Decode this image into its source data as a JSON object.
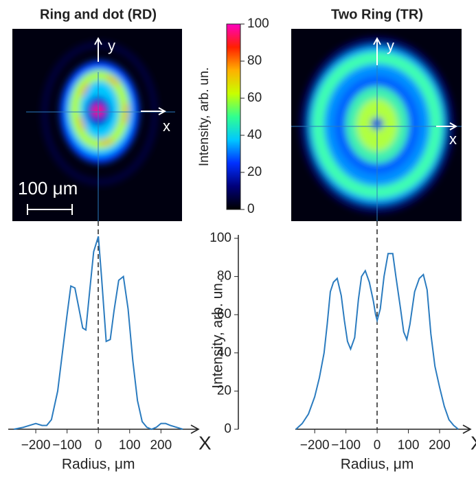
{
  "chart_data": [
    {
      "type": "image",
      "title": "Ring and dot (RD)",
      "xlabel": "x",
      "ylabel": "y",
      "scale_label": "100 μm"
    },
    {
      "type": "colorbar",
      "label": "Intensity, arb. un.",
      "lim": [
        0,
        100
      ],
      "ticks": [
        0,
        20,
        40,
        60,
        80,
        100
      ],
      "colors": [
        "#000000",
        "#00007a",
        "#0030ff",
        "#00c8ff",
        "#30ff90",
        "#c8ff00",
        "#ffb000",
        "#ff2000",
        "#ff00c0"
      ]
    },
    {
      "type": "image",
      "title": "Two Ring (TR)",
      "xlabel": "x",
      "ylabel": "y"
    },
    {
      "type": "line",
      "color": "#2a7bbf",
      "xlabel": "Radius, μm",
      "axis_label": "X",
      "x": [
        -270,
        -240,
        -220,
        -200,
        -180,
        -165,
        -150,
        -130,
        -115,
        -100,
        -88,
        -75,
        -63,
        -50,
        -40,
        -28,
        -15,
        0,
        10,
        25,
        38,
        50,
        65,
        80,
        95,
        110,
        125,
        140,
        155,
        170,
        185,
        200,
        215,
        230,
        250,
        270
      ],
      "values": [
        0,
        1,
        2,
        3,
        2,
        2,
        5,
        20,
        40,
        60,
        75,
        74,
        64,
        53,
        52,
        72,
        93,
        101,
        80,
        46,
        47,
        62,
        78,
        80,
        63,
        36,
        15,
        4,
        1,
        0,
        1,
        3,
        3,
        2,
        1,
        0
      ],
      "xlim": [
        -288,
        320
      ],
      "xticks": [
        {
          "value": -200,
          "label": "−200"
        },
        {
          "value": -100,
          "label": "−100"
        },
        0,
        100,
        200
      ],
      "ylim": [
        0,
        100
      ]
    },
    {
      "type": "line",
      "color": "#2a7bbf",
      "xlabel": "Radius, μm",
      "axis_label": "X",
      "ylabel": "Intensity, arb. un.",
      "x": [
        -260,
        -240,
        -220,
        -200,
        -185,
        -170,
        -160,
        -150,
        -140,
        -128,
        -115,
        -105,
        -95,
        -85,
        -72,
        -60,
        -50,
        -38,
        -25,
        -12,
        -5,
        0,
        10,
        22,
        35,
        50,
        60,
        75,
        85,
        95,
        105,
        120,
        135,
        148,
        160,
        172,
        185,
        200,
        215,
        230,
        245,
        260
      ],
      "values": [
        0,
        3,
        8,
        17,
        27,
        40,
        55,
        72,
        77,
        79,
        70,
        57,
        46,
        42,
        48,
        68,
        80,
        83,
        77,
        67,
        60,
        57,
        63,
        80,
        92,
        92,
        80,
        63,
        51,
        47,
        55,
        72,
        79,
        81,
        73,
        50,
        33,
        22,
        12,
        5,
        2,
        0
      ],
      "xlim": [
        -262,
        299
      ],
      "xticks": [
        {
          "value": -200,
          "label": "−200"
        },
        {
          "value": -100,
          "label": "−100"
        },
        0,
        100,
        200
      ],
      "ylim": [
        0,
        100
      ],
      "yticks": [
        0,
        20,
        40,
        60,
        80,
        100
      ]
    }
  ]
}
